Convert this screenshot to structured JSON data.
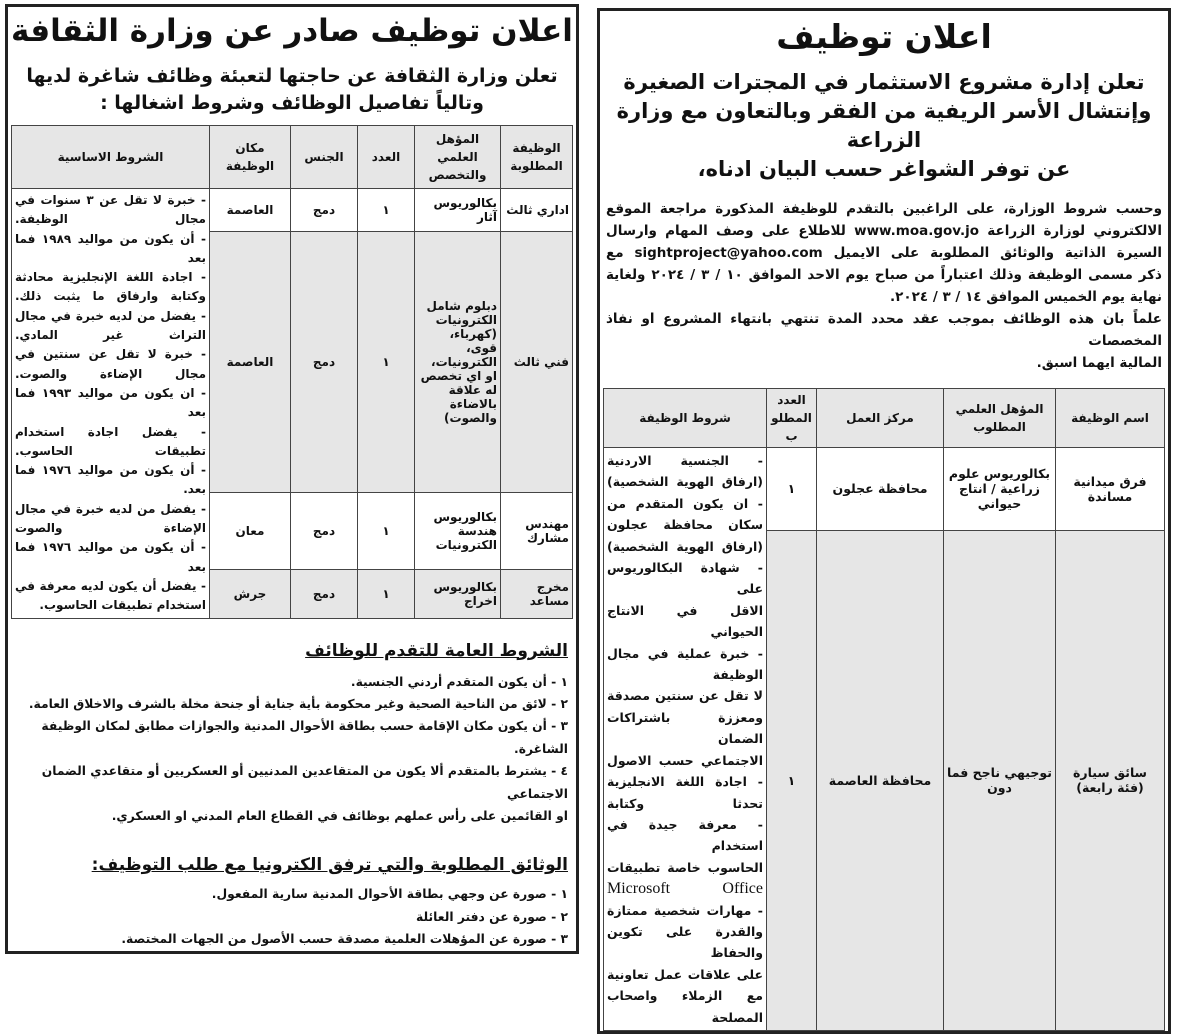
{
  "left": {
    "title": "اعلان توظيف صادر عن وزارة الثقافة",
    "subtitle_lines": [
      "تعلن وزارة الثقافة عن حاجتها لتعبئة وظائف شاغرة لديها",
      "وتالياً تفاصيل الوظائف وشروط اشغالها :"
    ],
    "table": {
      "headers": [
        "الوظيفة المطلوبة",
        "المؤهل العلمي والتخصص",
        "العدد",
        "الجنس",
        "مكان الوظيفة",
        "الشروط الاساسية"
      ],
      "rows": [
        {
          "job": "اداري ثالث",
          "qualification": "بكالوريوس آثار",
          "count": "١",
          "gender": "دمج",
          "place": "العاصمة"
        },
        {
          "job": "فني ثالث",
          "qualification": "دبلوم شامل الكترونيات (كهرباء، قوى، الكترونيات، او اي تخصص له علاقة بالاضاءة والصوت)",
          "count": "١",
          "gender": "دمج",
          "place": "العاصمة"
        },
        {
          "job": "مهندس مشارك",
          "qualification": "بكالوريوس هندسة الكترونيات",
          "count": "١",
          "gender": "دمج",
          "place": "معان"
        },
        {
          "job": "مخرج مساعد",
          "qualification": "بكالوريوس اخراج",
          "count": "١",
          "gender": "دمج",
          "place": "جرش"
        }
      ],
      "conditions_lines": [
        "- خبرة لا تقل عن ٣ سنوات في",
        "مجال الوظيفة.",
        "- أن يكون من مواليد ١٩٨٩ فما بعد",
        "- اجادة اللغة الإنجليزية محادثة",
        "وكتابة وارفاق ما يثبت ذلك.",
        "- يفضل من لديه خبرة في مجال",
        "التراث غير المادي.",
        "- خبرة لا تقل عن سنتين في",
        "مجال الإضاءة والصوت.",
        "- ان يكون من مواليد ١٩٩٣ فما بعد",
        "- يفضل اجادة استخدام",
        "تطبيقات الحاسوب.",
        "- أن يكون من مواليد ١٩٧٦ فما بعد.",
        "- يفضل من لديه خبرة في مجال",
        "الإضاءة والصوت",
        "- أن يكون من مواليد ١٩٧٦ فما بعد",
        "- يفضل أن يكون لديه معرفة في",
        "استخدام تطبيقات الحاسوب."
      ]
    },
    "general_conditions": {
      "heading": "الشروط العامة للتقدم للوظائف",
      "items": [
        "١ - أن يكون المتقدم أردني الجنسية.",
        "٢ - لائق من الناحية الصحية وغير محكومة بأية جناية أو جنحة مخلة بالشرف والاخلاق العامة.",
        "٣ - أن يكون مكان الإقامة حسب بطاقة الأحوال المدنية والجوازات مطابق لمكان الوظيفة الشاغرة.",
        "٤ - يشترط بالمتقدم ألا يكون من المتقاعدين المدنيين أو العسكريين أو متقاعدي الضمان الاجتماعي",
        "او القائمين على رأس عملهم بوظائف في القطاع العام المدني او العسكري."
      ]
    },
    "documents": {
      "heading": "الوثائق المطلوبة والتي ترفق الكترونيا مع طلب التوظيف:",
      "items": [
        "١ - صورة عن وجهي بطاقة الأحوال المدنية سارية المفعول.",
        "٢ - صورة عن دفتر العائلة",
        "٣ - صورة عن المؤهلات العلمية مصدقة حسب الأصول من الجهات المختصة."
      ]
    }
  },
  "right": {
    "title": "اعلان توظيف",
    "subtitle_lines": [
      "تعلن إدارة مشروع الاستثمار في المجترات الصغيرة",
      "وإنتشال الأسر الريفية من الفقر وبالتعاون مع وزارة",
      "الزراعة",
      "عن توفر الشواغر حسب البيان ادناه،"
    ],
    "paragraph_lines": [
      "وحسب شروط الوزارة، على الراغبين بالتقدم للوظيفة المذكورة مراجعة الموقع",
      "الالكتروني لوزارة الزراعة www.moa.gov.jo للاطلاع على وصف المهام وارسال",
      "السيرة الذاتية والوثائق المطلوبة على الايميل sightproject@yahoo.com مع",
      "ذكر مسمى الوظيفة وذلك اعتباراً من صباح يوم الاحد الموافق ١٠ / ٣ / ٢٠٢٤ ولغاية",
      "نهاية يوم الخميس الموافق ١٤ / ٣ / ٢٠٢٤.",
      "علماً بان هذه الوظائف بموجب عقد محدد المدة تنتهي بانتهاء المشروع او نفاذ المخصصات",
      "المالية ايهما اسبق."
    ],
    "table": {
      "headers": [
        "اسم الوظيفة",
        "المؤهل العلمي المطلوب",
        "مركز العمل",
        "العدد المطلوب",
        "شروط الوظيفة"
      ],
      "rows": [
        {
          "job": "فرق ميدانية مساندة",
          "qualification": "بكالوريوس علوم زراعية / انتاج حيواني",
          "center": "محافظة عجلون",
          "count": "١"
        },
        {
          "job": "سائق سيارة (فئة رابعة)",
          "qualification": "توجيهي ناجح فما دون",
          "center": "محافظة العاصمة",
          "count": "١"
        }
      ],
      "conditions_lines": [
        "- الجنسية الاردنية",
        "(ارفاق الهوية الشخصية)",
        "- ان يكون المتقدم من",
        "سكان محافظة عجلون",
        "(ارفاق الهوية الشخصية)",
        "- شهادة البكالوريوس على",
        "الاقل في الانتاج الحيواني",
        "- خبرة عملية في مجال الوظيفة",
        "لا تقل عن سنتين مصدقة",
        "ومعززة باشتراكات الضمان",
        "الاجتماعي حسب الاصول",
        "- اجادة اللغة الانجليزية",
        "تحدثا وكتابة",
        "- معرفة جيدة في استخدام",
        "الحاسوب خاصة تطبيقات",
        "Microsoft Office",
        "- مهارات شخصية ممتازة",
        "والقدرة على تكوين والحفاظ",
        "على علاقات عمل تعاونية",
        "مع الزملاء واصحاب المصلحة"
      ]
    }
  }
}
